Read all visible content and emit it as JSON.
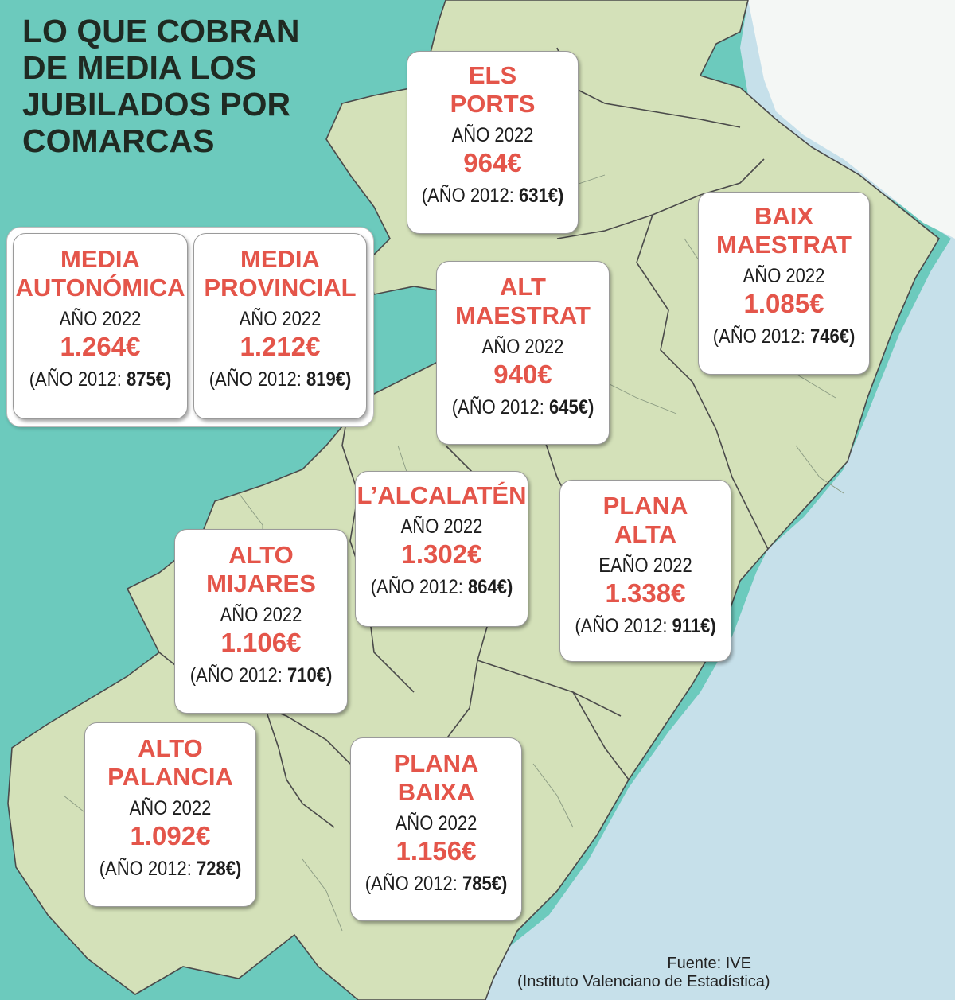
{
  "title_lines": [
    "LO QUE COBRAN",
    "DE MEDIA LOS",
    "JUBILADOS POR",
    "COMARCAS"
  ],
  "colors": {
    "sea_left": "#6ccabd",
    "sea_right": "#c6e0ea",
    "land": "#d4e1b9",
    "border": "#4a4a4a",
    "accent": "#e4554a",
    "text": "#1d1d1d"
  },
  "averages": [
    {
      "name_lines": [
        "MEDIA",
        "AUTONÓMICA"
      ],
      "year_label": "AÑO 2022",
      "value": "1.264€",
      "prev_label": "(AÑO 2012:",
      "prev_value": "875€)"
    },
    {
      "name_lines": [
        "MEDIA",
        "PROVINCIAL"
      ],
      "year_label": "AÑO 2022",
      "value": "1.212€",
      "prev_label": "(AÑO 2012:",
      "prev_value": "819€)"
    }
  ],
  "comarcas": [
    {
      "name_lines": [
        "ELS",
        "PORTS"
      ],
      "year_label": "AÑO 2022",
      "value": "964€",
      "prev_label": "(AÑO 2012:",
      "prev_value": "631€)"
    },
    {
      "name_lines": [
        "BAIX",
        "MAESTRAT"
      ],
      "year_label": "AÑO 2022",
      "value": "1.085€",
      "prev_label": "(AÑO 2012:",
      "prev_value": "746€)"
    },
    {
      "name_lines": [
        "ALT",
        "MAESTRAT"
      ],
      "year_label": "AÑO 2022",
      "value": "940€",
      "prev_label": "(AÑO 2012:",
      "prev_value": "645€)"
    },
    {
      "name_lines": [
        "L’ALCALATÉN"
      ],
      "year_label": "AÑO 2022",
      "value": "1.302€",
      "prev_label": "(AÑO 2012:",
      "prev_value": "864€)"
    },
    {
      "name_lines": [
        "PLANA",
        "ALTA"
      ],
      "year_label": "EAÑO 2022",
      "value": "1.338€",
      "prev_label": "(AÑO 2012:",
      "prev_value": "911€)"
    },
    {
      "name_lines": [
        "ALTO",
        "MIJARES"
      ],
      "year_label": "AÑO 2022",
      "value": "1.106€",
      "prev_label": "(AÑO 2012:",
      "prev_value": "710€)"
    },
    {
      "name_lines": [
        "ALTO",
        "PALANCIA"
      ],
      "year_label": "AÑO 2022",
      "value": "1.092€",
      "prev_label": "(AÑO 2012:",
      "prev_value": "728€)"
    },
    {
      "name_lines": [
        "PLANA",
        "BAIXA"
      ],
      "year_label": "AÑO 2022",
      "value": "1.156€",
      "prev_label": "(AÑO 2012:",
      "prev_value": "785€)"
    }
  ],
  "source": {
    "line1": "Fuente: IVE",
    "line2": "(Instituto Valenciano de Estadística)"
  }
}
